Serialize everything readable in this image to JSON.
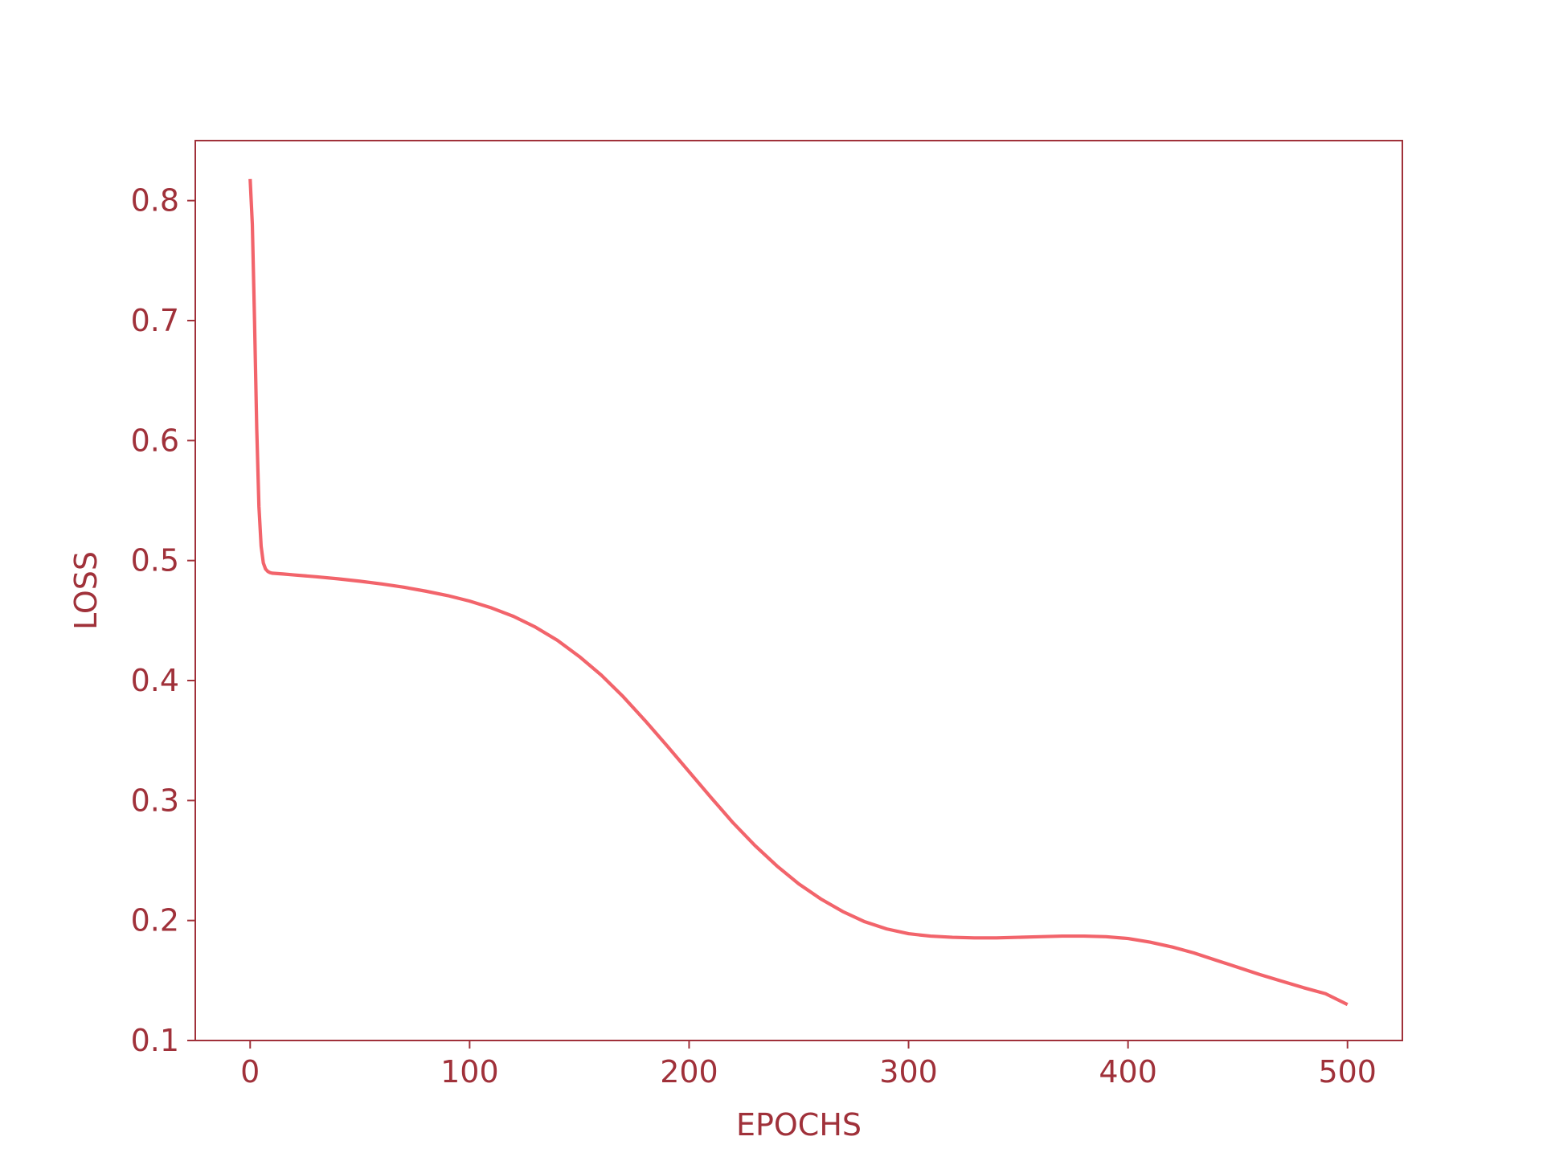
{
  "colors": {
    "axis": "#a0313a",
    "line": "#f2646b",
    "background": "#ffffff"
  },
  "chart_data": {
    "type": "line",
    "title": "",
    "xlabel": "EPOCHS",
    "ylabel": "LOSS",
    "xlim": [
      -25,
      525
    ],
    "ylim": [
      0.1,
      0.85
    ],
    "xticks": [
      0,
      100,
      200,
      300,
      400,
      500
    ],
    "xtick_labels": [
      "0",
      "100",
      "200",
      "300",
      "400",
      "500"
    ],
    "yticks": [
      0.1,
      0.2,
      0.3,
      0.4,
      0.5,
      0.6,
      0.7,
      0.8
    ],
    "ytick_labels": [
      "0.1",
      "0.2",
      "0.3",
      "0.4",
      "0.5",
      "0.6",
      "0.7",
      "0.8"
    ],
    "grid": false,
    "legend": "none",
    "series": [
      {
        "x": [
          0,
          1,
          2,
          3,
          4,
          5,
          6,
          7,
          8,
          9,
          10,
          15,
          20,
          30,
          40,
          50,
          60,
          70,
          80,
          90,
          100,
          110,
          120,
          130,
          140,
          150,
          160,
          170,
          180,
          190,
          200,
          210,
          220,
          230,
          240,
          250,
          260,
          270,
          280,
          290,
          300,
          310,
          320,
          330,
          340,
          350,
          360,
          370,
          380,
          390,
          400,
          410,
          420,
          430,
          440,
          450,
          460,
          470,
          480,
          490,
          500
        ],
        "y": [
          0.818,
          0.78,
          0.7,
          0.61,
          0.545,
          0.512,
          0.498,
          0.493,
          0.491,
          0.49,
          0.4895,
          0.4888,
          0.488,
          0.4865,
          0.4848,
          0.4828,
          0.4805,
          0.4778,
          0.4745,
          0.4708,
          0.4662,
          0.4605,
          0.4535,
          0.4445,
          0.4335,
          0.42,
          0.4045,
          0.3865,
          0.3665,
          0.3455,
          0.324,
          0.3025,
          0.2815,
          0.2625,
          0.2455,
          0.2305,
          0.218,
          0.2075,
          0.199,
          0.193,
          0.189,
          0.187,
          0.186,
          0.1855,
          0.1855,
          0.186,
          0.1865,
          0.187,
          0.187,
          0.1865,
          0.185,
          0.182,
          0.178,
          0.173,
          0.167,
          0.161,
          0.155,
          0.1495,
          0.144,
          0.139,
          0.13
        ]
      }
    ]
  }
}
